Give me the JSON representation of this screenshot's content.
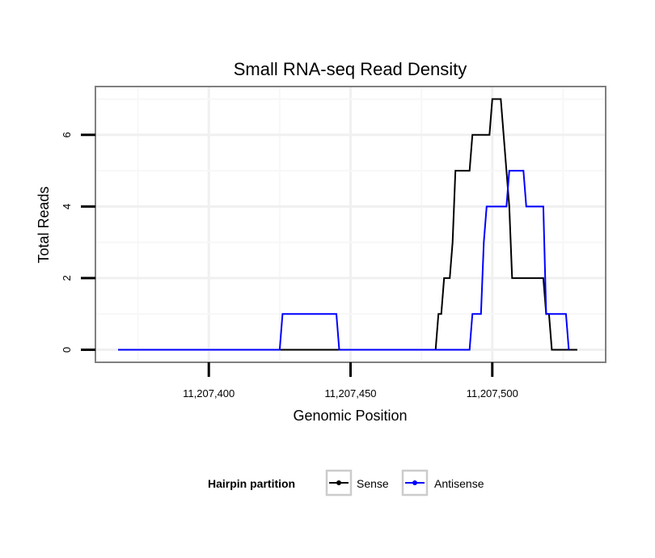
{
  "chart_data": {
    "type": "line",
    "title": "Small RNA-seq Read Density",
    "xlabel": "Genomic Position",
    "ylabel": "Total Reads",
    "xlim": [
      11207360,
      11207540
    ],
    "ylim": [
      -0.35,
      7.35
    ],
    "x_ticks": [
      {
        "value": 11207400,
        "label": "11,207,400"
      },
      {
        "value": 11207450,
        "label": "11,207,450"
      },
      {
        "value": 11207500,
        "label": "11,207,500"
      }
    ],
    "y_ticks": [
      {
        "value": 0,
        "label": "0"
      },
      {
        "value": 2,
        "label": "2"
      },
      {
        "value": 4,
        "label": "4"
      },
      {
        "value": 6,
        "label": "6"
      }
    ],
    "legend_title": "Hairpin partition",
    "series": [
      {
        "name": "Sense",
        "color": "#000000",
        "points": [
          [
            11207368,
            0
          ],
          [
            11207480,
            0
          ],
          [
            11207481,
            1
          ],
          [
            11207482,
            1
          ],
          [
            11207483,
            2
          ],
          [
            11207485,
            2
          ],
          [
            11207486,
            3
          ],
          [
            11207487,
            5
          ],
          [
            11207492,
            5
          ],
          [
            11207493,
            6
          ],
          [
            11207499,
            6
          ],
          [
            11207500,
            7
          ],
          [
            11207503,
            7
          ],
          [
            11207504,
            6
          ],
          [
            11207505,
            5
          ],
          [
            11207506,
            4
          ],
          [
            11207507,
            2
          ],
          [
            11207518,
            2
          ],
          [
            11207519,
            1
          ],
          [
            11207520,
            1
          ],
          [
            11207521,
            0
          ],
          [
            11207530,
            0
          ]
        ]
      },
      {
        "name": "Antisense",
        "color": "#0000ff",
        "points": [
          [
            11207368,
            0
          ],
          [
            11207425,
            0
          ],
          [
            11207426,
            1
          ],
          [
            11207445,
            1
          ],
          [
            11207446,
            0
          ],
          [
            11207492,
            0
          ],
          [
            11207493,
            1
          ],
          [
            11207496,
            1
          ],
          [
            11207497,
            3
          ],
          [
            11207498,
            4
          ],
          [
            11207505,
            4
          ],
          [
            11207506,
            5
          ],
          [
            11207511,
            5
          ],
          [
            11207512,
            4
          ],
          [
            11207518,
            4
          ],
          [
            11207519,
            1
          ],
          [
            11207526,
            1
          ],
          [
            11207527,
            0
          ]
        ]
      }
    ]
  }
}
